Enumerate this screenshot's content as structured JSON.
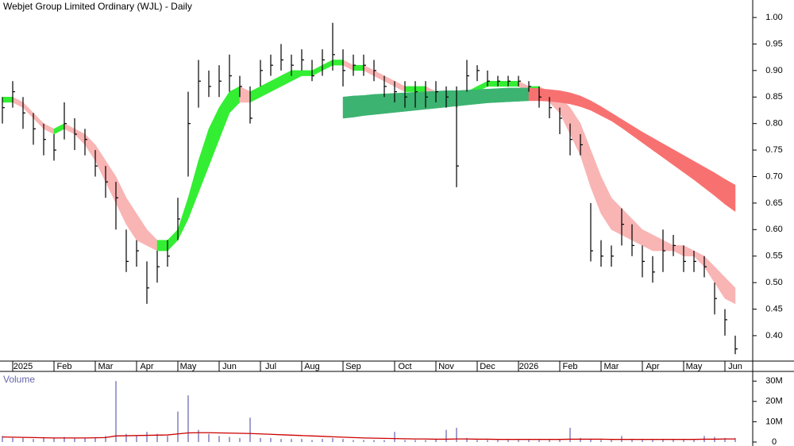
{
  "chart_data": [
    {
      "type": "ohlc",
      "title": "Webjet Group Limited Ordinary (WJL) - Daily",
      "categories": [
        null,
        null,
        "2025",
        null,
        null,
        null,
        "Feb",
        null,
        null,
        null,
        "Mar",
        null,
        null,
        null,
        "Apr",
        null,
        null,
        null,
        "May",
        null,
        null,
        null,
        "Jun",
        null,
        null,
        null,
        "Jul",
        null,
        null,
        null,
        "Aug",
        null,
        null,
        null,
        "Sep",
        null,
        null,
        null,
        null,
        "Oct",
        null,
        null,
        null,
        "Nov",
        null,
        null,
        null,
        "Dec",
        null,
        null,
        null,
        "2026",
        null,
        null,
        null,
        "Feb",
        null,
        null,
        null,
        "Mar",
        null,
        null,
        null,
        "Apr",
        null,
        null,
        null,
        "May",
        null,
        null,
        null,
        "Jun"
      ],
      "close": [
        0.83,
        0.86,
        0.82,
        0.79,
        0.77,
        0.75,
        0.8,
        0.78,
        0.77,
        0.72,
        0.69,
        0.66,
        0.54,
        0.56,
        0.49,
        0.53,
        0.55,
        0.62,
        0.8,
        0.88,
        0.87,
        0.88,
        0.89,
        0.87,
        0.81,
        0.9,
        0.91,
        0.92,
        0.91,
        0.92,
        0.89,
        0.92,
        0.93,
        0.9,
        0.91,
        0.91,
        0.9,
        0.87,
        0.86,
        0.85,
        0.86,
        0.85,
        0.86,
        0.85,
        0.72,
        0.89,
        0.9,
        0.88,
        0.88,
        0.88,
        0.88,
        0.87,
        0.85,
        0.83,
        0.81,
        0.77,
        0.76,
        0.56,
        0.55,
        0.55,
        0.61,
        0.57,
        0.54,
        0.52,
        0.56,
        0.57,
        0.54,
        0.54,
        0.53,
        0.47,
        0.43,
        0.375
      ],
      "high": [
        0.85,
        0.88,
        0.85,
        0.82,
        0.8,
        0.78,
        0.84,
        0.81,
        0.79,
        0.75,
        0.72,
        0.69,
        0.6,
        0.58,
        0.54,
        0.56,
        0.58,
        0.66,
        0.86,
        0.92,
        0.9,
        0.91,
        0.93,
        0.89,
        0.87,
        0.92,
        0.93,
        0.95,
        0.93,
        0.94,
        0.92,
        0.94,
        0.99,
        0.94,
        0.93,
        0.93,
        0.92,
        0.89,
        0.88,
        0.88,
        0.88,
        0.88,
        0.88,
        0.87,
        0.87,
        0.92,
        0.91,
        0.9,
        0.89,
        0.89,
        0.89,
        0.88,
        0.87,
        0.85,
        0.83,
        0.8,
        0.78,
        0.65,
        0.58,
        0.57,
        0.64,
        0.61,
        0.57,
        0.55,
        0.6,
        0.59,
        0.57,
        0.56,
        0.55,
        0.5,
        0.45,
        0.4
      ],
      "low": [
        0.8,
        0.83,
        0.79,
        0.76,
        0.74,
        0.73,
        0.77,
        0.75,
        0.74,
        0.7,
        0.66,
        0.6,
        0.52,
        0.53,
        0.46,
        0.5,
        0.53,
        0.58,
        0.7,
        0.83,
        0.85,
        0.85,
        0.86,
        0.85,
        0.8,
        0.87,
        0.89,
        0.9,
        0.89,
        0.9,
        0.88,
        0.89,
        0.9,
        0.87,
        0.89,
        0.89,
        0.88,
        0.85,
        0.84,
        0.83,
        0.83,
        0.83,
        0.84,
        0.83,
        0.68,
        0.86,
        0.88,
        0.87,
        0.87,
        0.87,
        0.87,
        0.86,
        0.83,
        0.81,
        0.78,
        0.74,
        0.74,
        0.54,
        0.53,
        0.53,
        0.57,
        0.55,
        0.51,
        0.5,
        0.52,
        0.55,
        0.52,
        0.52,
        0.51,
        0.44,
        0.4,
        0.365
      ],
      "color": "#000000",
      "bands": [
        {
          "upper": [
            0.85,
            0.85,
            0.84,
            0.82,
            0.8,
            0.79,
            0.8,
            0.79,
            0.78,
            0.76,
            0.73,
            0.7,
            0.66,
            0.63,
            0.6,
            0.58,
            0.58,
            0.6,
            0.66,
            0.73,
            0.79,
            0.83,
            0.86,
            0.87,
            0.86,
            0.87,
            0.88,
            0.89,
            0.9,
            0.9,
            0.9,
            0.91,
            0.92,
            0.92,
            0.91,
            0.91,
            0.9,
            0.89,
            0.88,
            0.87,
            0.87,
            0.87,
            0.86,
            0.86,
            0.84,
            0.86,
            0.87,
            0.88,
            0.88,
            0.88,
            0.88,
            0.87,
            0.87,
            0.86,
            0.85,
            0.83,
            0.8,
            0.75,
            0.7,
            0.66,
            0.64,
            0.62,
            0.6,
            0.59,
            0.58,
            0.57,
            0.57,
            0.56,
            0.55,
            0.53,
            0.51,
            0.49
          ],
          "lower": [
            0.84,
            0.84,
            0.83,
            0.81,
            0.79,
            0.78,
            0.79,
            0.78,
            0.76,
            0.73,
            0.69,
            0.65,
            0.61,
            0.58,
            0.57,
            0.56,
            0.56,
            0.58,
            0.62,
            0.67,
            0.72,
            0.77,
            0.82,
            0.84,
            0.84,
            0.85,
            0.86,
            0.87,
            0.88,
            0.89,
            0.89,
            0.9,
            0.91,
            0.91,
            0.9,
            0.9,
            0.89,
            0.88,
            0.87,
            0.86,
            0.86,
            0.86,
            0.85,
            0.85,
            0.83,
            0.85,
            0.86,
            0.87,
            0.87,
            0.87,
            0.87,
            0.86,
            0.86,
            0.84,
            0.82,
            0.78,
            0.74,
            0.68,
            0.63,
            0.6,
            0.59,
            0.58,
            0.57,
            0.56,
            0.56,
            0.56,
            0.55,
            0.55,
            0.53,
            0.5,
            0.47,
            0.46
          ],
          "up_color": "#33ee33",
          "down_color": "#f9b4b4"
        },
        {
          "upper": [
            null,
            null,
            null,
            null,
            null,
            null,
            null,
            null,
            null,
            null,
            null,
            null,
            null,
            null,
            null,
            null,
            null,
            null,
            null,
            null,
            null,
            null,
            null,
            null,
            null,
            null,
            null,
            null,
            null,
            null,
            null,
            null,
            null,
            0.85,
            0.852,
            0.853,
            0.855,
            0.856,
            0.857,
            0.858,
            0.859,
            0.86,
            0.861,
            0.862,
            0.862,
            0.863,
            0.864,
            0.865,
            0.866,
            0.867,
            0.867,
            0.867,
            0.866,
            0.864,
            0.862,
            0.858,
            0.852,
            0.843,
            0.832,
            0.82,
            0.808,
            0.796,
            0.784,
            0.773,
            0.762,
            0.751,
            0.74,
            0.729,
            0.718,
            0.707,
            0.695,
            0.684
          ],
          "lower": [
            null,
            null,
            null,
            null,
            null,
            null,
            null,
            null,
            null,
            null,
            null,
            null,
            null,
            null,
            null,
            null,
            null,
            null,
            null,
            null,
            null,
            null,
            null,
            null,
            null,
            null,
            null,
            null,
            null,
            null,
            null,
            null,
            null,
            0.81,
            0.812,
            0.815,
            0.817,
            0.819,
            0.821,
            0.823,
            0.825,
            0.827,
            0.829,
            0.831,
            0.833,
            0.835,
            0.837,
            0.839,
            0.84,
            0.841,
            0.842,
            0.843,
            0.843,
            0.842,
            0.84,
            0.837,
            0.832,
            0.825,
            0.815,
            0.805,
            0.792,
            0.778,
            0.764,
            0.75,
            0.736,
            0.722,
            0.708,
            0.694,
            0.679,
            0.664,
            0.648,
            0.634
          ],
          "up_color": "#3cb371",
          "down_color": "#f87171"
        }
      ],
      "ylim": [
        0.352,
        1.033
      ],
      "yticks": [
        {
          "value": 0.4,
          "label": "0.40"
        },
        {
          "value": 0.45,
          "label": "0.45"
        },
        {
          "value": 0.5,
          "label": "0.50"
        },
        {
          "value": 0.55,
          "label": "0.55"
        },
        {
          "value": 0.6,
          "label": "0.60"
        },
        {
          "value": 0.65,
          "label": "0.65"
        },
        {
          "value": 0.7,
          "label": "0.70"
        },
        {
          "value": 0.75,
          "label": "0.75"
        },
        {
          "value": 0.8,
          "label": "0.80"
        },
        {
          "value": 0.85,
          "label": "0.85"
        },
        {
          "value": 0.9,
          "label": "0.90"
        },
        {
          "value": 0.95,
          "label": "0.95"
        },
        {
          "value": 1,
          "label": "1.00"
        }
      ]
    },
    {
      "type": "bar",
      "title": "Volume",
      "color": "#8080c0",
      "values": [
        3000000,
        2000000,
        2000000,
        1500000,
        2000000,
        2000000,
        2500000,
        2000000,
        2000000,
        2000000,
        3000000,
        30000000,
        4000000,
        3000000,
        5000000,
        4000000,
        3000000,
        15000000,
        23000000,
        6000000,
        4000000,
        3000000,
        2500000,
        2000000,
        12000000,
        2000000,
        2000000,
        1500000,
        1500000,
        1500000,
        1000000,
        1500000,
        2000000,
        1500000,
        1000000,
        1000000,
        1000000,
        1000000,
        5000000,
        1000000,
        1000000,
        1000000,
        1500000,
        6000000,
        7000000,
        2000000,
        1000000,
        1000000,
        1000000,
        1000000,
        1000000,
        1000000,
        1000000,
        1000000,
        1500000,
        7000000,
        2000000,
        1500000,
        1000000,
        1000000,
        3000000,
        1500000,
        1000000,
        1000000,
        1500000,
        1500000,
        1000000,
        1000000,
        3000000,
        2500000,
        2000000,
        2000000
      ],
      "average": [
        2500000,
        2400000,
        2300000,
        2200000,
        2100000,
        2000000,
        2000000,
        2000000,
        2000000,
        2100000,
        2200000,
        3000000,
        3100000,
        3200000,
        3300000,
        3400000,
        3500000,
        4000000,
        4500000,
        4600000,
        4600000,
        4500000,
        4400000,
        4300000,
        4200000,
        4000000,
        3800000,
        3600000,
        3400000,
        3200000,
        3000000,
        2800000,
        2600000,
        2400000,
        2200000,
        2000000,
        1900000,
        1800000,
        1700000,
        1600000,
        1500000,
        1500000,
        1400000,
        1400000,
        1500000,
        1500000,
        1400000,
        1400000,
        1300000,
        1300000,
        1300000,
        1300000,
        1300000,
        1300000,
        1300000,
        1400000,
        1400000,
        1400000,
        1400000,
        1300000,
        1300000,
        1300000,
        1300000,
        1300000,
        1300000,
        1300000,
        1300000,
        1300000,
        1400000,
        1400000,
        1500000,
        1500000
      ],
      "average_color": "#cc0000",
      "ylim": [
        0,
        34000000
      ],
      "yticks": [
        0,
        {
          "value": 10000000,
          "label": "10M"
        },
        {
          "value": 20000000,
          "label": "20M"
        },
        {
          "value": 30000000,
          "label": "30M"
        }
      ]
    }
  ]
}
